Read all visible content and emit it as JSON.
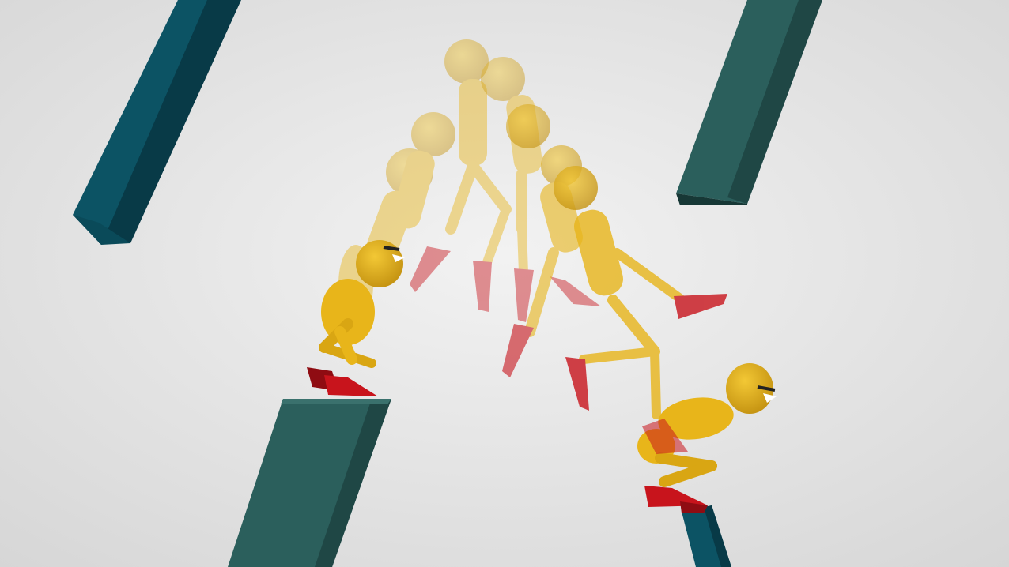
{
  "scene": {
    "type": "3d-render",
    "subject": "ragdoll-character-jump-motion-sequence",
    "colors": {
      "background_center": "#f1f1f1",
      "background_edge": "#d8d8d8",
      "platform_teal": "#2b5f5c",
      "platform_teal_dark": "#1f4745",
      "platform_blue": "#0c5364",
      "platform_blue_dark": "#083a47",
      "body": "#e8b51a",
      "body_shade": "#c79410",
      "feet": "#c8141c",
      "feet_shade": "#8f0c12",
      "eye": "#ffffff",
      "brow": "#222222"
    },
    "poses": [
      "crouch-start",
      "rise",
      "jump-arc-high",
      "jump-arc-peak",
      "descent",
      "kick",
      "landing-crouch"
    ]
  }
}
